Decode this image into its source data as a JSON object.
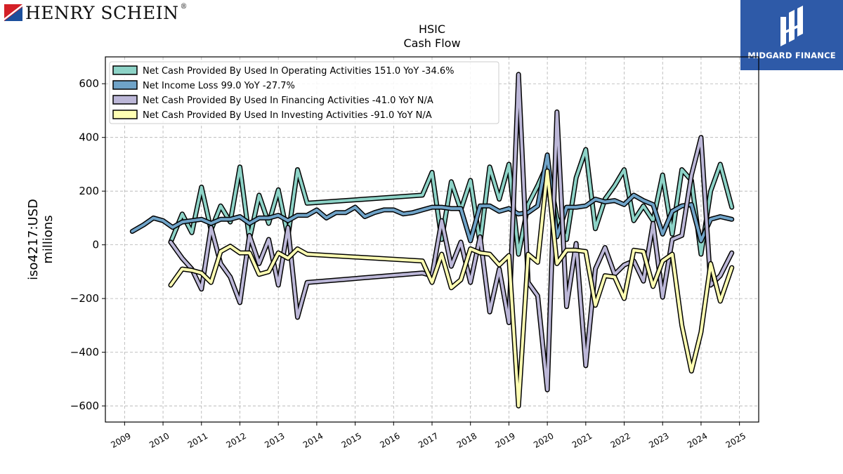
{
  "brand": {
    "name": "HENRY SCHEIN",
    "reg": "®"
  },
  "logo": {
    "text": "MIDGARD FINANCE"
  },
  "colors": {
    "operating": "#8dd3c7",
    "net_income": "#6fa3c8",
    "financing": "#bcb7d8",
    "investing": "#ffffb3",
    "outline": "#000000",
    "grid": "#b0b0b0"
  },
  "chart_data": {
    "type": "line",
    "title": "HSIC",
    "subtitle": "Cash Flow",
    "ylabel": "iso4217:USD",
    "ylabel2": "millions",
    "xlim": [
      2008.5,
      2025.5
    ],
    "ylim": [
      -660,
      700
    ],
    "yticks": [
      600,
      400,
      200,
      0,
      -200,
      -400,
      -600
    ],
    "ytick_labels": [
      "600",
      "400",
      "200",
      "0",
      "−200",
      "−400",
      "−600"
    ],
    "xticks": [
      2009,
      2010,
      2011,
      2012,
      2013,
      2014,
      2015,
      2016,
      2017,
      2018,
      2019,
      2020,
      2021,
      2022,
      2023,
      2024,
      2025
    ],
    "grid": true,
    "legend_position": "top-left",
    "series": [
      {
        "name": "Net Cash Provided By Used In Operating Activities  151.0 YoY -34.6%",
        "color_key": "operating",
        "x": [
          2010.2,
          2010.5,
          2010.75,
          2011.0,
          2011.25,
          2011.5,
          2011.75,
          2012.0,
          2012.25,
          2012.5,
          2012.75,
          2013.0,
          2013.25,
          2013.5,
          2013.75,
          2016.75,
          2017.0,
          2017.25,
          2017.5,
          2017.75,
          2018.0,
          2018.25,
          2018.5,
          2018.75,
          2019.0,
          2019.25,
          2019.5,
          2019.75,
          2020.0,
          2020.25,
          2020.5,
          2020.75,
          2021.0,
          2021.25,
          2021.5,
          2021.75,
          2022.0,
          2022.25,
          2022.5,
          2022.75,
          2023.0,
          2023.25,
          2023.5,
          2023.75,
          2024.0,
          2024.25,
          2024.5,
          2024.8
        ],
        "y": [
          10,
          115,
          45,
          215,
          55,
          145,
          85,
          290,
          20,
          185,
          80,
          205,
          30,
          280,
          155,
          185,
          270,
          20,
          235,
          130,
          240,
          5,
          290,
          170,
          300,
          -35,
          150,
          220,
          300,
          100,
          20,
          250,
          355,
          60,
          170,
          220,
          280,
          90,
          145,
          90,
          260,
          40,
          280,
          240,
          -35,
          200,
          300,
          140
        ]
      },
      {
        "name": "Net Income Loss  99.0 YoY -27.7%",
        "color_key": "net_income",
        "x": [
          2009.2,
          2009.5,
          2009.75,
          2010.0,
          2010.25,
          2010.5,
          2010.75,
          2011.0,
          2011.25,
          2011.5,
          2011.75,
          2012.0,
          2012.25,
          2012.5,
          2012.75,
          2013.0,
          2013.25,
          2013.5,
          2013.75,
          2014.0,
          2014.25,
          2014.5,
          2014.75,
          2015.0,
          2015.25,
          2015.5,
          2015.75,
          2016.0,
          2016.25,
          2016.5,
          2016.75,
          2017.0,
          2017.25,
          2017.5,
          2017.75,
          2018.0,
          2018.25,
          2018.5,
          2018.75,
          2019.0,
          2019.25,
          2019.5,
          2019.75,
          2020.0,
          2020.25,
          2020.5,
          2020.75,
          2021.0,
          2021.25,
          2021.5,
          2021.75,
          2022.0,
          2022.25,
          2022.5,
          2022.75,
          2023.0,
          2023.25,
          2023.5,
          2023.75,
          2024.0,
          2024.25,
          2024.5,
          2024.8
        ],
        "y": [
          50,
          75,
          100,
          90,
          65,
          85,
          90,
          95,
          80,
          95,
          95,
          105,
          80,
          100,
          100,
          110,
          90,
          110,
          110,
          130,
          100,
          120,
          120,
          140,
          105,
          120,
          130,
          130,
          115,
          120,
          130,
          140,
          140,
          135,
          135,
          15,
          145,
          145,
          125,
          135,
          115,
          120,
          145,
          335,
          30,
          140,
          140,
          145,
          170,
          160,
          165,
          150,
          185,
          165,
          150,
          40,
          125,
          145,
          150,
          15,
          95,
          105,
          95
        ]
      },
      {
        "name": "Net Cash Provided By Used In Financing Activities  -41.0 YoY N/A",
        "color_key": "financing",
        "x": [
          2010.2,
          2010.5,
          2010.75,
          2011.0,
          2011.25,
          2011.5,
          2011.75,
          2012.0,
          2012.25,
          2012.5,
          2012.75,
          2013.0,
          2013.25,
          2013.5,
          2013.75,
          2016.75,
          2017.0,
          2017.25,
          2017.5,
          2017.75,
          2018.0,
          2018.25,
          2018.5,
          2018.75,
          2019.0,
          2019.25,
          2019.5,
          2019.75,
          2020.0,
          2020.25,
          2020.5,
          2020.75,
          2021.0,
          2021.25,
          2021.5,
          2021.75,
          2022.0,
          2022.25,
          2022.5,
          2022.75,
          2023.0,
          2023.25,
          2023.5,
          2023.75,
          2024.0,
          2024.25,
          2024.5,
          2024.8
        ],
        "y": [
          10,
          -50,
          -90,
          -165,
          65,
          -70,
          -120,
          -215,
          35,
          -70,
          20,
          -150,
          65,
          -270,
          -140,
          -105,
          -115,
          90,
          -80,
          10,
          -140,
          30,
          -250,
          -90,
          -290,
          635,
          -140,
          -190,
          -540,
          495,
          -230,
          5,
          -450,
          -90,
          -10,
          -110,
          -75,
          -60,
          -135,
          80,
          -195,
          20,
          35,
          260,
          400,
          -150,
          -115,
          -30
        ]
      },
      {
        "name": "Net Cash Provided By Used In Investing Activities  -91.0 YoY N/A",
        "color_key": "investing",
        "x": [
          2010.2,
          2010.5,
          2010.75,
          2011.0,
          2011.25,
          2011.5,
          2011.75,
          2012.0,
          2012.25,
          2012.5,
          2012.75,
          2013.0,
          2013.25,
          2013.5,
          2013.75,
          2016.75,
          2017.0,
          2017.25,
          2017.5,
          2017.75,
          2018.0,
          2018.25,
          2018.5,
          2018.75,
          2019.0,
          2019.25,
          2019.5,
          2019.75,
          2020.0,
          2020.25,
          2020.5,
          2020.75,
          2021.0,
          2021.25,
          2021.5,
          2021.75,
          2022.0,
          2022.25,
          2022.5,
          2022.75,
          2023.0,
          2023.25,
          2023.5,
          2023.75,
          2024.0,
          2024.25,
          2024.5,
          2024.8
        ],
        "y": [
          -150,
          -90,
          -95,
          -105,
          -140,
          -25,
          -5,
          -30,
          -30,
          -110,
          -100,
          -30,
          -50,
          -15,
          -35,
          -60,
          -140,
          -35,
          -160,
          -130,
          -15,
          -30,
          -35,
          -75,
          -40,
          -600,
          -35,
          -65,
          275,
          -70,
          -20,
          -20,
          -25,
          -225,
          -115,
          -120,
          -200,
          -20,
          -25,
          -155,
          -60,
          -35,
          -300,
          -470,
          -325,
          -70,
          -210,
          -85
        ]
      }
    ]
  }
}
